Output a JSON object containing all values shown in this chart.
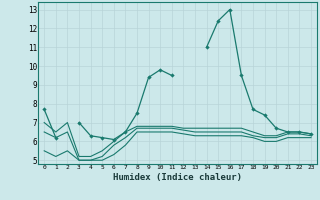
{
  "xlabel": "Humidex (Indice chaleur)",
  "bg_color": "#cce8ea",
  "grid_color": "#b8d4d8",
  "line_color": "#1a7a6e",
  "x_values": [
    0,
    1,
    2,
    3,
    4,
    5,
    6,
    7,
    8,
    9,
    10,
    11,
    12,
    13,
    14,
    15,
    16,
    17,
    18,
    19,
    20,
    21,
    22,
    23
  ],
  "series1": [
    7.7,
    6.2,
    null,
    7.0,
    6.3,
    6.2,
    6.1,
    6.5,
    7.5,
    9.4,
    9.8,
    9.5,
    null,
    null,
    11.0,
    12.4,
    13.0,
    9.5,
    7.7,
    7.4,
    6.7,
    6.5,
    6.5,
    6.4
  ],
  "series3": [
    7.0,
    6.5,
    7.0,
    5.2,
    5.2,
    5.5,
    6.0,
    6.5,
    6.8,
    6.8,
    6.8,
    6.8,
    6.7,
    6.7,
    6.7,
    6.7,
    6.7,
    6.7,
    6.5,
    6.3,
    6.3,
    6.5,
    6.5,
    6.4
  ],
  "series4": [
    6.5,
    6.2,
    6.5,
    5.0,
    5.0,
    5.2,
    5.8,
    6.2,
    6.7,
    6.7,
    6.7,
    6.7,
    6.6,
    6.5,
    6.5,
    6.5,
    6.5,
    6.5,
    6.3,
    6.2,
    6.2,
    6.4,
    6.4,
    6.3
  ],
  "series5": [
    5.5,
    5.2,
    5.5,
    5.0,
    5.0,
    5.0,
    5.3,
    5.8,
    6.5,
    6.5,
    6.5,
    6.5,
    6.4,
    6.3,
    6.3,
    6.3,
    6.3,
    6.3,
    6.2,
    6.0,
    6.0,
    6.2,
    6.2,
    6.2
  ],
  "ylim": [
    4.8,
    13.4
  ],
  "yticks": [
    5,
    6,
    7,
    8,
    9,
    10,
    11,
    12,
    13
  ]
}
